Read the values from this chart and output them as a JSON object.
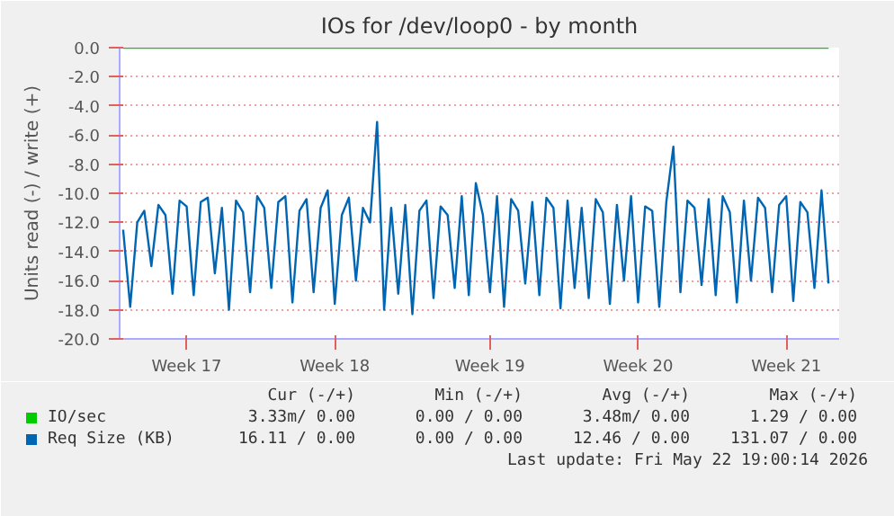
{
  "chart_data": {
    "type": "line",
    "title": "IOs for /dev/loop0 - by month",
    "ylabel": "Units read (-) / write (+)",
    "ylim": [
      -20,
      0
    ],
    "categories": [
      null,
      null,
      null,
      null,
      null,
      null,
      null,
      null,
      null,
      "Week 17",
      null,
      null,
      null,
      null,
      null,
      null,
      null,
      null,
      null,
      null,
      null,
      null,
      null,
      null,
      null,
      null,
      null,
      null,
      null,
      null,
      "Week 18",
      null,
      null,
      null,
      null,
      null,
      null,
      null,
      null,
      null,
      null,
      null,
      null,
      null,
      null,
      null,
      null,
      null,
      null,
      null,
      null,
      null,
      "Week 19",
      null,
      null,
      null,
      null,
      null,
      null,
      null,
      null,
      null,
      null,
      null,
      null,
      null,
      null,
      null,
      null,
      null,
      null,
      null,
      null,
      "Week 20",
      null,
      null,
      null,
      null,
      null,
      null,
      null,
      null,
      null,
      null,
      null,
      null,
      null,
      null,
      null,
      null,
      null,
      null,
      null,
      null,
      "Week 21",
      null,
      null,
      null,
      null,
      null,
      null
    ],
    "yticks": [
      {
        "value": -20,
        "label": "-20.0"
      },
      {
        "value": -18,
        "label": "-18.0"
      },
      {
        "value": -16,
        "label": "-16.0"
      },
      {
        "value": -14,
        "label": "-14.0"
      },
      {
        "value": -12,
        "label": "-12.0"
      },
      {
        "value": -10,
        "label": "-10.0"
      },
      {
        "value": -8,
        "label": "-8.0"
      },
      {
        "value": -6,
        "label": "-6.0"
      },
      {
        "value": -4,
        "label": "-4.0"
      },
      {
        "value": -2,
        "label": "-2.0"
      },
      {
        "value": 0,
        "label": "0.0"
      }
    ],
    "grid": "y",
    "legend": "bottom",
    "series": [
      {
        "name": "IO/sec",
        "color": "#00cc00",
        "values": [
          0,
          0,
          0,
          0,
          0,
          0,
          0,
          0,
          0,
          0,
          0,
          0,
          0,
          0,
          0,
          0,
          0,
          0,
          0,
          0,
          0,
          0,
          0,
          0,
          0,
          0,
          0,
          0,
          0,
          0,
          0,
          0,
          0,
          0,
          0,
          0,
          0,
          0,
          0,
          0,
          0,
          0,
          0,
          0,
          0,
          0,
          0,
          0,
          0,
          0,
          0,
          0,
          0,
          0,
          0,
          0,
          0,
          0,
          0,
          0,
          0,
          0,
          0,
          0,
          0,
          0,
          0,
          0,
          0,
          0,
          0,
          0,
          0,
          0,
          0,
          0,
          0,
          0,
          0,
          0,
          0,
          0,
          0,
          0,
          0,
          0,
          0,
          0,
          0,
          0,
          0,
          0,
          0,
          0,
          0,
          0,
          0,
          0,
          0,
          0,
          0
        ]
      },
      {
        "name": "Req Size (KB)",
        "color": "#0066b3",
        "values": [
          -12.5,
          -17.8,
          -12.0,
          -11.2,
          -15.0,
          -10.8,
          -11.5,
          -16.9,
          -10.5,
          -10.9,
          -17.0,
          -10.6,
          -10.3,
          -15.5,
          -11.0,
          -18.0,
          -10.5,
          -11.3,
          -16.8,
          -10.2,
          -11.0,
          -16.5,
          -10.6,
          -10.2,
          -17.5,
          -11.2,
          -10.4,
          -16.8,
          -11.0,
          -9.8,
          -17.6,
          -11.5,
          -10.3,
          -16.0,
          -11.0,
          -12.0,
          -5.1,
          -18.0,
          -11.0,
          -16.9,
          -10.8,
          -18.3,
          -11.2,
          -10.5,
          -17.2,
          -10.9,
          -11.5,
          -16.5,
          -10.2,
          -17.0,
          -9.3,
          -11.5,
          -16.8,
          -10.2,
          -17.8,
          -10.4,
          -11.2,
          -16.2,
          -10.6,
          -17.0,
          -10.3,
          -11.0,
          -17.9,
          -10.5,
          -16.5,
          -11.0,
          -17.2,
          -10.4,
          -11.3,
          -17.6,
          -10.8,
          -16.0,
          -10.2,
          -17.5,
          -10.9,
          -11.2,
          -17.8,
          -10.6,
          -6.8,
          -16.8,
          -10.5,
          -11.0,
          -16.3,
          -10.4,
          -17.0,
          -10.2,
          -11.3,
          -17.5,
          -10.5,
          -16.0,
          -10.3,
          -11.0,
          -16.8,
          -10.8,
          -10.2,
          -17.4,
          -10.6,
          -11.3,
          -16.5,
          -9.8,
          -16.2
        ]
      }
    ],
    "annotations": [
      "Cur (-/+)",
      "Min (-/+)",
      "Avg (-/+)",
      "Max (-/+)",
      "3.33m/ 0.00",
      "0.00 / 0.00",
      "3.48m/ 0.00",
      "1.29 / 0.00",
      "16.11 / 0.00",
      "0.00 / 0.00",
      "12.46 / 0.00",
      "131.07 / 0.00",
      "Last update: Fri May 22 19:00:14 2026"
    ]
  }
}
